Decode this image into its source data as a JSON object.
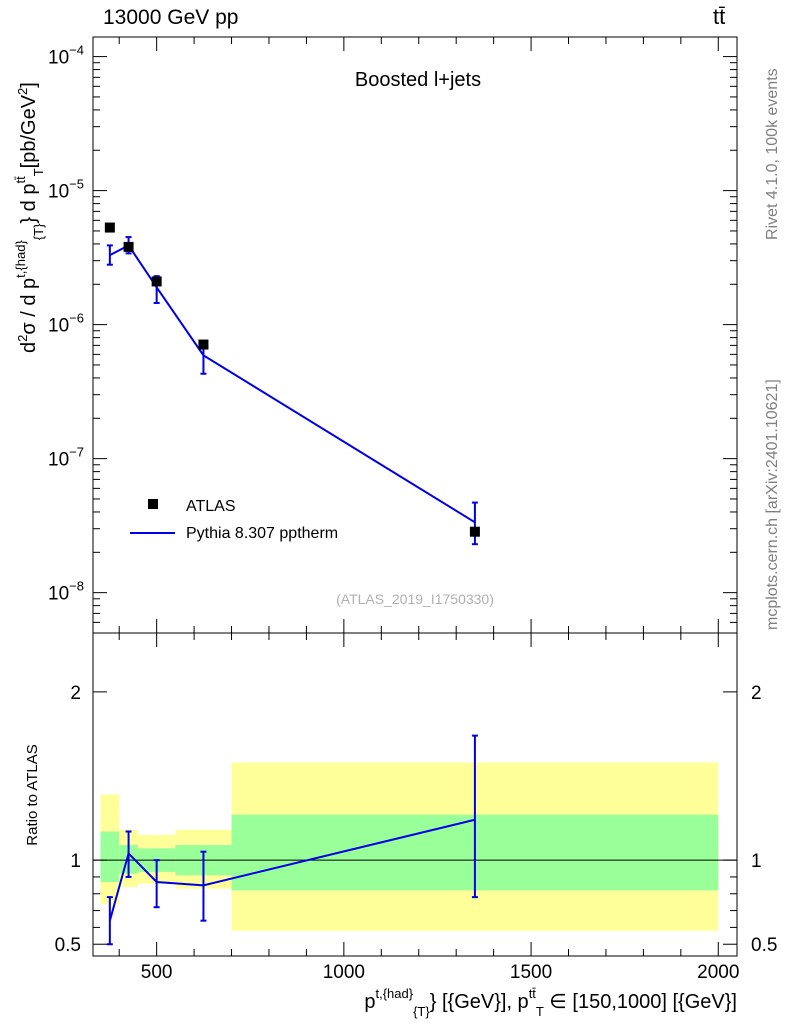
{
  "header": {
    "left": "13000 GeV pp",
    "right": "tt̄"
  },
  "side": {
    "top": "Rivet 4.1.0,  100k events",
    "bottom": "mcplots.cern.ch [arXiv:2401.10621]"
  },
  "colors": {
    "mc": "#0000e6",
    "band_outer": "#ffff99",
    "band_inner": "#99ff99",
    "data": "#000000"
  },
  "chart_data": [
    {
      "type": "scatter",
      "title": "Boosted l+jets",
      "watermark": "(ATLAS_2019_I1750330)",
      "ylabel_parts": [
        "d",
        "2",
        "σ  /  d p",
        "t,{had",
        "}",
        "{T}",
        "} d p",
        "tt̄",
        "T",
        "[pb/GeV",
        "2",
        "]"
      ],
      "yscale": "log",
      "ylim": [
        5e-09,
        0.00014
      ],
      "xlim": [
        330,
        2050
      ],
      "ytick_labels": [
        {
          "value": 0.0001,
          "base": "10",
          "exp": "−4"
        },
        {
          "value": 1e-05,
          "base": "10",
          "exp": "−5"
        },
        {
          "value": 1e-06,
          "base": "10",
          "exp": "−6"
        },
        {
          "value": 1e-07,
          "base": "10",
          "exp": "−7"
        },
        {
          "value": 1e-08,
          "base": "10",
          "exp": "−8"
        }
      ],
      "legend": {
        "position": "bottom-left",
        "data_label": "ATLAS",
        "mc_label": "Pythia 8.307 pptherm"
      },
      "data_series": {
        "name": "ATLAS",
        "x": [
          375,
          425,
          500,
          625,
          1350
        ],
        "y": [
          5.3e-06,
          3.8e-06,
          2.1e-06,
          7.1e-07,
          2.85e-08
        ]
      },
      "mc_series": {
        "name": "Pythia 8.307 pptherm",
        "x": [
          375,
          425,
          500,
          625,
          1350
        ],
        "y": [
          3.3e-06,
          3.9e-06,
          1.9e-06,
          5.9e-07,
          3.35e-08
        ],
        "err_lo": [
          2.8e-06,
          3.4e-06,
          1.45e-06,
          4.3e-07,
          2.3e-08
        ],
        "err_hi": [
          3.9e-06,
          4.5e-06,
          2.3e-06,
          7.3e-07,
          4.7e-08
        ]
      }
    },
    {
      "type": "line",
      "ylabel": "Ratio to ATLAS",
      "xlabel_parts": [
        "p",
        "t,{had",
        "}",
        "{T}",
        "} [{GeV}], p",
        "tt̄",
        "T",
        " ∈ [150,1000] [{GeV}]"
      ],
      "ylim": [
        0.43,
        2.35
      ],
      "xlim": [
        330,
        2050
      ],
      "xticks": [
        500,
        1000,
        1500,
        2000
      ],
      "xtick_labels": [
        "500",
        "1000",
        "1500",
        "2000"
      ],
      "yticks": [
        0.5,
        1,
        2
      ],
      "ytick_labels": [
        "0.5",
        "1",
        "2"
      ],
      "bands": [
        {
          "x0": 350,
          "x1": 400,
          "outer": [
            0.74,
            1.39
          ],
          "inner": [
            0.87,
            1.17
          ]
        },
        {
          "x0": 400,
          "x1": 450,
          "outer": [
            0.84,
            1.18
          ],
          "inner": [
            0.92,
            1.09
          ]
        },
        {
          "x0": 450,
          "x1": 550,
          "outer": [
            0.86,
            1.15
          ],
          "inner": [
            0.93,
            1.07
          ]
        },
        {
          "x0": 550,
          "x1": 700,
          "outer": [
            0.83,
            1.18
          ],
          "inner": [
            0.91,
            1.09
          ]
        },
        {
          "x0": 700,
          "x1": 2000,
          "outer": [
            0.58,
            1.58
          ],
          "inner": [
            0.82,
            1.27
          ]
        }
      ],
      "ratio_series": {
        "x": [
          375,
          425,
          500,
          625,
          1350
        ],
        "y": [
          0.64,
          1.04,
          0.87,
          0.85,
          1.24
        ],
        "err_lo": [
          0.5,
          0.9,
          0.72,
          0.64,
          0.78
        ],
        "err_hi": [
          0.78,
          1.17,
          1.0,
          1.05,
          1.74
        ]
      }
    }
  ]
}
